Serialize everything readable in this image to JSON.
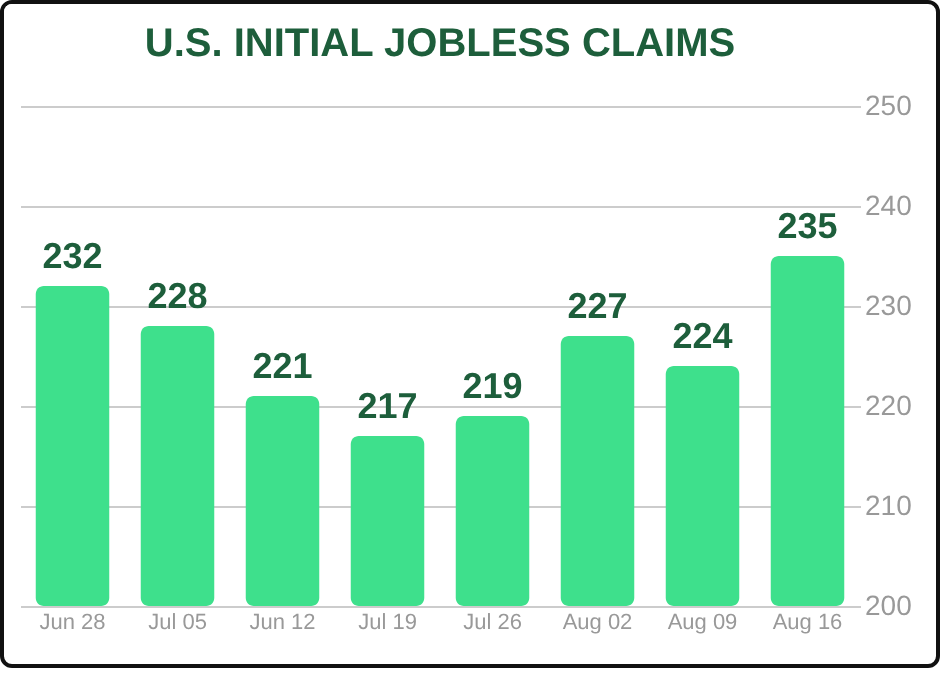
{
  "chart_data": {
    "type": "bar",
    "title": "U.S. INITIAL JOBLESS CLAIMS",
    "categories": [
      "Jun 28",
      "Jul 05",
      "Jun 12",
      "Jul 19",
      "Jul 26",
      "Aug 02",
      "Aug 09",
      "Aug 16"
    ],
    "values": [
      232,
      228,
      221,
      217,
      219,
      227,
      224,
      235
    ],
    "color": "#3ee08c",
    "ylim": [
      200,
      250
    ],
    "yticks": [
      200,
      210,
      220,
      230,
      240,
      250
    ],
    "grid": "y",
    "data_labels": true
  }
}
